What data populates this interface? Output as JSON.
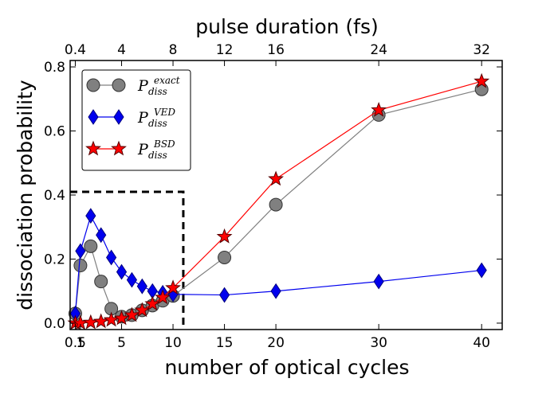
{
  "chart_data": {
    "type": "line",
    "xlabel": "number of optical cycles",
    "ylabel": "dissociation probability",
    "top_xlabel": "pulse duration (fs)",
    "xlim": [
      0,
      42
    ],
    "ylim": [
      -0.02,
      0.82
    ],
    "x_ticks": [
      0.5,
      1,
      5,
      10,
      15,
      20,
      30,
      40
    ],
    "x_tick_labels": [
      "0.5",
      "1",
      "5",
      "10",
      "15",
      "20",
      "30",
      "40"
    ],
    "top_ticks": [
      0.5,
      5,
      10,
      15,
      20,
      30,
      40
    ],
    "top_tick_labels": [
      "0.4",
      "4",
      "8",
      "12",
      "16",
      "24",
      "32"
    ],
    "y_ticks": [
      0.0,
      0.2,
      0.4,
      0.6,
      0.8
    ],
    "y_tick_labels": [
      "0.0",
      "0.2",
      "0.4",
      "0.6",
      "0.8"
    ],
    "legend_location": "top-left",
    "inset_box": {
      "x_max": 11,
      "y_max": 0.41,
      "style": "dashed"
    },
    "series": [
      {
        "name": "P_diss^exact",
        "label_main": "P",
        "label_sub": "diss",
        "label_sup": "exact",
        "color": "#808080",
        "edge": "#333333",
        "marker": "circle",
        "x": [
          0.5,
          1,
          2,
          3,
          4,
          5,
          6,
          7,
          8,
          9,
          10,
          15,
          20,
          30,
          40
        ],
        "y": [
          0.03,
          0.18,
          0.24,
          0.13,
          0.045,
          0.02,
          0.025,
          0.04,
          0.055,
          0.07,
          0.085,
          0.205,
          0.37,
          0.65,
          0.73
        ]
      },
      {
        "name": "P_diss^VED",
        "label_main": "P",
        "label_sub": "diss",
        "label_sup": "VED",
        "color": "#0000ee",
        "edge": "#000080",
        "marker": "diamond",
        "x": [
          0.5,
          1,
          2,
          3,
          4,
          5,
          6,
          7,
          8,
          9,
          10,
          15,
          20,
          30,
          40
        ],
        "y": [
          0.03,
          0.225,
          0.335,
          0.275,
          0.205,
          0.16,
          0.135,
          0.115,
          0.1,
          0.095,
          0.09,
          0.088,
          0.1,
          0.13,
          0.165
        ]
      },
      {
        "name": "P_diss^BSD",
        "label_main": "P",
        "label_sub": "diss",
        "label_sup": "BSD",
        "color": "#ff0000",
        "edge": "#550000",
        "marker": "star",
        "x": [
          0.5,
          1,
          2,
          3,
          4,
          5,
          6,
          7,
          8,
          9,
          10,
          15,
          20,
          30,
          40
        ],
        "y": [
          0.0,
          0.0,
          0.002,
          0.005,
          0.01,
          0.015,
          0.025,
          0.04,
          0.06,
          0.08,
          0.11,
          0.27,
          0.45,
          0.665,
          0.755
        ]
      }
    ]
  }
}
